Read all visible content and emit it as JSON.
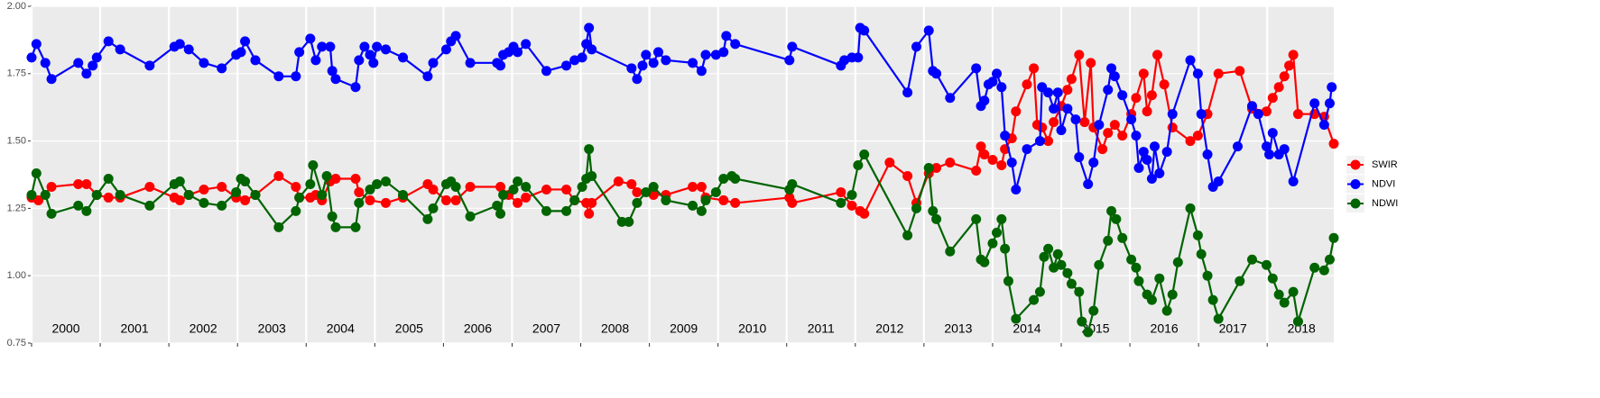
{
  "chart_data": {
    "type": "line",
    "xlim": [
      2000,
      2018.97
    ],
    "xticks": [
      2000,
      2001,
      2002,
      2003,
      2004,
      2005,
      2006,
      2007,
      2008,
      2009,
      2010,
      2011,
      2012,
      2013,
      2014,
      2015,
      2016,
      2017,
      2018
    ],
    "ylim": [
      0.75,
      2.0
    ],
    "yticks": [
      {
        "value": 0.75,
        "label": "0.75"
      },
      {
        "value": 1.0,
        "label": "1.00"
      },
      {
        "value": 1.25,
        "label": "1.25"
      },
      {
        "value": 1.5,
        "label": "1.50"
      },
      {
        "value": 1.75,
        "label": "1.75"
      },
      {
        "value": 2.0,
        "label": "2.00"
      }
    ],
    "grid": true,
    "legend": "right",
    "annotations": [
      {
        "text": "2000",
        "x": 2000.5
      },
      {
        "text": "2001",
        "x": 2001.5
      },
      {
        "text": "2002",
        "x": 2002.5
      },
      {
        "text": "2003",
        "x": 2003.5
      },
      {
        "text": "2004",
        "x": 2004.5
      },
      {
        "text": "2005",
        "x": 2005.5
      },
      {
        "text": "2006",
        "x": 2006.5
      },
      {
        "text": "2007",
        "x": 2007.5
      },
      {
        "text": "2008",
        "x": 2008.5
      },
      {
        "text": "2009",
        "x": 2009.5
      },
      {
        "text": "2010",
        "x": 2010.5
      },
      {
        "text": "2011",
        "x": 2011.5
      },
      {
        "text": "2012",
        "x": 2012.5
      },
      {
        "text": "2013",
        "x": 2013.5
      },
      {
        "text": "2014",
        "x": 2014.5
      },
      {
        "text": "2015",
        "x": 2015.5
      },
      {
        "text": "2016",
        "x": 2016.5
      },
      {
        "text": "2017",
        "x": 2017.5
      },
      {
        "text": "2018",
        "x": 2018.5
      }
    ],
    "series": [
      {
        "name": "SWIR",
        "color": "#ff0000",
        "x": [
          2000.0,
          2000.1,
          2000.29,
          2000.68,
          2000.8,
          2000.95,
          2001.12,
          2001.29,
          2001.72,
          2002.08,
          2002.16,
          2002.29,
          2002.51,
          2002.77,
          2002.98,
          2003.11,
          2003.26,
          2003.6,
          2003.85,
          2003.9,
          2004.06,
          2004.14,
          2004.23,
          2004.35,
          2004.43,
          2004.72,
          2004.77,
          2004.93,
          2005.16,
          2005.41,
          2005.77,
          2005.85,
          2006.04,
          2006.18,
          2006.39,
          2006.83,
          2006.95,
          2007.08,
          2007.2,
          2007.5,
          2007.79,
          2007.91,
          2008.08,
          2008.12,
          2008.16,
          2008.55,
          2008.74,
          2008.82,
          2009.06,
          2009.24,
          2009.63,
          2009.76,
          2009.82,
          2010.08,
          2010.25,
          2011.04,
          2011.08,
          2011.79,
          2011.95,
          2012.07,
          2012.13,
          2012.5,
          2012.76,
          2012.89,
          2013.07,
          2013.18,
          2013.38,
          2013.76,
          2013.83,
          2013.88,
          2014.0,
          2014.13,
          2014.18,
          2014.28,
          2014.34,
          2014.5,
          2014.6,
          2014.65,
          2014.72,
          2014.81,
          2014.89,
          2015.0,
          2015.09,
          2015.15,
          2015.26,
          2015.34,
          2015.43,
          2015.47,
          2015.6,
          2015.68,
          2015.78,
          2015.89,
          2016.02,
          2016.09,
          2016.2,
          2016.25,
          2016.32,
          2016.4,
          2016.5,
          2016.62,
          2016.88,
          2016.99,
          2017.13,
          2017.29,
          2017.6,
          2017.78,
          2017.99,
          2018.08,
          2018.17,
          2018.25,
          2018.32,
          2018.38,
          2018.45,
          2018.69,
          2018.83,
          2018.97
        ],
        "values": [
          1.29,
          1.28,
          1.33,
          1.34,
          1.34,
          1.3,
          1.29,
          1.29,
          1.33,
          1.29,
          1.28,
          1.3,
          1.32,
          1.33,
          1.29,
          1.28,
          1.3,
          1.37,
          1.33,
          1.29,
          1.29,
          1.3,
          1.28,
          1.35,
          1.36,
          1.36,
          1.31,
          1.28,
          1.27,
          1.29,
          1.34,
          1.32,
          1.28,
          1.28,
          1.33,
          1.33,
          1.3,
          1.27,
          1.29,
          1.32,
          1.32,
          1.28,
          1.27,
          1.23,
          1.27,
          1.35,
          1.34,
          1.31,
          1.3,
          1.3,
          1.33,
          1.33,
          1.29,
          1.28,
          1.27,
          1.29,
          1.27,
          1.31,
          1.26,
          1.24,
          1.23,
          1.42,
          1.37,
          1.27,
          1.38,
          1.4,
          1.42,
          1.39,
          1.48,
          1.45,
          1.43,
          1.41,
          1.47,
          1.51,
          1.61,
          1.71,
          1.77,
          1.56,
          1.55,
          1.5,
          1.57,
          1.63,
          1.69,
          1.73,
          1.82,
          1.57,
          1.79,
          1.55,
          1.47,
          1.53,
          1.56,
          1.52,
          1.6,
          1.66,
          1.75,
          1.61,
          1.67,
          1.82,
          1.71,
          1.55,
          1.5,
          1.52,
          1.6,
          1.75,
          1.76,
          1.62,
          1.61,
          1.66,
          1.7,
          1.74,
          1.78,
          1.82,
          1.6,
          1.6,
          1.59,
          1.49
        ]
      },
      {
        "name": "NDVI",
        "color": "#0000ff",
        "x": [
          2000.0,
          2000.07,
          2000.2,
          2000.29,
          2000.68,
          2000.8,
          2000.89,
          2000.95,
          2001.12,
          2001.29,
          2001.72,
          2002.08,
          2002.16,
          2002.29,
          2002.51,
          2002.77,
          2002.98,
          2003.05,
          2003.11,
          2003.26,
          2003.6,
          2003.85,
          2003.9,
          2004.06,
          2004.14,
          2004.23,
          2004.35,
          2004.38,
          2004.43,
          2004.72,
          2004.77,
          2004.85,
          2004.93,
          2004.98,
          2005.03,
          2005.16,
          2005.41,
          2005.77,
          2005.85,
          2006.04,
          2006.11,
          2006.18,
          2006.39,
          2006.78,
          2006.83,
          2006.87,
          2006.95,
          2007.02,
          2007.08,
          2007.2,
          2007.5,
          2007.79,
          2007.91,
          2008.02,
          2008.08,
          2008.12,
          2008.16,
          2008.74,
          2008.82,
          2008.9,
          2008.95,
          2009.06,
          2009.13,
          2009.24,
          2009.63,
          2009.76,
          2009.82,
          2009.97,
          2010.08,
          2010.12,
          2010.25,
          2011.04,
          2011.08,
          2011.79,
          2011.84,
          2011.95,
          2012.04,
          2012.07,
          2012.13,
          2012.76,
          2012.89,
          2013.07,
          2013.13,
          2013.18,
          2013.38,
          2013.76,
          2013.83,
          2013.88,
          2013.94,
          2014.0,
          2014.06,
          2014.13,
          2014.18,
          2014.28,
          2014.34,
          2014.5,
          2014.69,
          2014.72,
          2014.81,
          2014.89,
          2014.95,
          2015.0,
          2015.09,
          2015.21,
          2015.26,
          2015.39,
          2015.47,
          2015.55,
          2015.68,
          2015.73,
          2015.78,
          2015.89,
          2016.02,
          2016.09,
          2016.13,
          2016.2,
          2016.25,
          2016.32,
          2016.36,
          2016.43,
          2016.54,
          2016.62,
          2016.88,
          2016.99,
          2017.04,
          2017.13,
          2017.21,
          2017.29,
          2017.57,
          2017.78,
          2017.87,
          2017.99,
          2018.03,
          2018.08,
          2018.17,
          2018.25,
          2018.38,
          2018.69,
          2018.83,
          2018.91,
          2018.94
        ],
        "values": [
          1.81,
          1.86,
          1.79,
          1.73,
          1.79,
          1.75,
          1.78,
          1.81,
          1.87,
          1.84,
          1.78,
          1.85,
          1.86,
          1.84,
          1.79,
          1.77,
          1.82,
          1.83,
          1.87,
          1.8,
          1.74,
          1.74,
          1.83,
          1.88,
          1.8,
          1.85,
          1.85,
          1.76,
          1.73,
          1.7,
          1.8,
          1.85,
          1.82,
          1.79,
          1.85,
          1.84,
          1.81,
          1.74,
          1.79,
          1.84,
          1.87,
          1.89,
          1.79,
          1.79,
          1.78,
          1.82,
          1.83,
          1.85,
          1.83,
          1.86,
          1.76,
          1.78,
          1.8,
          1.81,
          1.86,
          1.92,
          1.84,
          1.77,
          1.73,
          1.78,
          1.82,
          1.79,
          1.83,
          1.8,
          1.79,
          1.76,
          1.82,
          1.82,
          1.83,
          1.89,
          1.86,
          1.8,
          1.85,
          1.78,
          1.8,
          1.81,
          1.81,
          1.92,
          1.91,
          1.68,
          1.85,
          1.91,
          1.76,
          1.75,
          1.66,
          1.77,
          1.63,
          1.65,
          1.71,
          1.72,
          1.75,
          1.7,
          1.52,
          1.42,
          1.32,
          1.47,
          1.5,
          1.7,
          1.68,
          1.62,
          1.68,
          1.54,
          1.62,
          1.58,
          1.44,
          1.34,
          1.42,
          1.56,
          1.69,
          1.77,
          1.74,
          1.67,
          1.58,
          1.52,
          1.4,
          1.46,
          1.43,
          1.36,
          1.48,
          1.38,
          1.46,
          1.6,
          1.8,
          1.75,
          1.6,
          1.45,
          1.33,
          1.35,
          1.48,
          1.63,
          1.6,
          1.48,
          1.45,
          1.53,
          1.45,
          1.47,
          1.35,
          1.64,
          1.56,
          1.64,
          1.7
        ]
      },
      {
        "name": "NDWI",
        "color": "#006400",
        "x": [
          2000.0,
          2000.07,
          2000.2,
          2000.29,
          2000.68,
          2000.8,
          2000.95,
          2001.12,
          2001.29,
          2001.72,
          2002.08,
          2002.16,
          2002.29,
          2002.51,
          2002.77,
          2002.98,
          2003.05,
          2003.11,
          2003.26,
          2003.6,
          2003.85,
          2003.9,
          2004.06,
          2004.1,
          2004.23,
          2004.3,
          2004.38,
          2004.43,
          2004.72,
          2004.77,
          2004.93,
          2005.03,
          2005.16,
          2005.41,
          2005.77,
          2005.85,
          2006.04,
          2006.11,
          2006.18,
          2006.39,
          2006.78,
          2006.83,
          2006.87,
          2007.02,
          2007.08,
          2007.2,
          2007.5,
          2007.79,
          2007.91,
          2008.02,
          2008.08,
          2008.12,
          2008.16,
          2008.6,
          2008.7,
          2008.82,
          2008.95,
          2009.06,
          2009.24,
          2009.63,
          2009.76,
          2009.82,
          2009.97,
          2010.08,
          2010.2,
          2010.25,
          2011.04,
          2011.08,
          2011.79,
          2011.95,
          2012.04,
          2012.13,
          2012.76,
          2012.89,
          2013.07,
          2013.13,
          2013.18,
          2013.38,
          2013.76,
          2013.83,
          2013.88,
          2014.0,
          2014.06,
          2014.13,
          2014.18,
          2014.23,
          2014.34,
          2014.6,
          2014.69,
          2014.75,
          2014.81,
          2014.89,
          2014.95,
          2015.0,
          2015.09,
          2015.15,
          2015.26,
          2015.3,
          2015.39,
          2015.47,
          2015.55,
          2015.68,
          2015.73,
          2015.8,
          2015.89,
          2016.02,
          2016.09,
          2016.13,
          2016.25,
          2016.32,
          2016.43,
          2016.54,
          2016.62,
          2016.7,
          2016.88,
          2016.99,
          2017.04,
          2017.13,
          2017.21,
          2017.29,
          2017.6,
          2017.78,
          2017.99,
          2018.08,
          2018.17,
          2018.25,
          2018.38,
          2018.45,
          2018.69,
          2018.83,
          2018.91,
          2018.97
        ],
        "values": [
          1.3,
          1.38,
          1.3,
          1.23,
          1.26,
          1.24,
          1.3,
          1.36,
          1.3,
          1.26,
          1.34,
          1.35,
          1.3,
          1.27,
          1.26,
          1.31,
          1.36,
          1.35,
          1.3,
          1.18,
          1.24,
          1.29,
          1.34,
          1.41,
          1.3,
          1.37,
          1.22,
          1.18,
          1.18,
          1.27,
          1.32,
          1.34,
          1.35,
          1.3,
          1.21,
          1.25,
          1.34,
          1.35,
          1.33,
          1.22,
          1.26,
          1.23,
          1.3,
          1.32,
          1.35,
          1.33,
          1.24,
          1.24,
          1.28,
          1.33,
          1.36,
          1.47,
          1.37,
          1.2,
          1.2,
          1.27,
          1.31,
          1.33,
          1.28,
          1.26,
          1.24,
          1.28,
          1.31,
          1.36,
          1.37,
          1.36,
          1.32,
          1.34,
          1.27,
          1.3,
          1.41,
          1.45,
          1.15,
          1.25,
          1.4,
          1.24,
          1.21,
          1.09,
          1.21,
          1.06,
          1.05,
          1.12,
          1.16,
          1.21,
          1.1,
          0.98,
          0.84,
          0.91,
          0.94,
          1.07,
          1.1,
          1.03,
          1.08,
          1.04,
          1.01,
          0.97,
          0.94,
          0.83,
          0.79,
          0.87,
          1.04,
          1.13,
          1.24,
          1.21,
          1.14,
          1.06,
          1.03,
          0.98,
          0.93,
          0.91,
          0.99,
          0.87,
          0.93,
          1.05,
          1.25,
          1.15,
          1.08,
          1.0,
          0.91,
          0.84,
          0.98,
          1.06,
          1.04,
          0.99,
          0.93,
          0.9,
          0.94,
          0.83,
          1.03,
          1.02,
          1.06,
          1.14
        ]
      }
    ]
  }
}
